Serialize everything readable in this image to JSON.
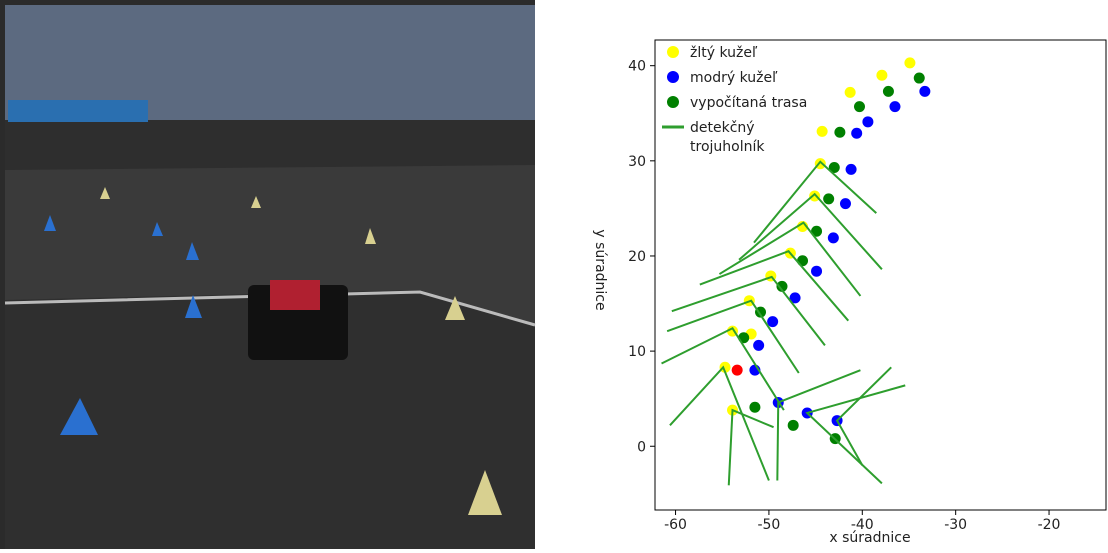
{
  "chart_data": {
    "type": "scatter",
    "xlabel": "x súradnice",
    "ylabel": "y súradnice",
    "xlim": [
      -62.2,
      -13.9
    ],
    "ylim": [
      -6.7,
      42.7
    ],
    "xticks": [
      -60,
      -50,
      -40,
      -30,
      -20
    ],
    "yticks": [
      0,
      10,
      20,
      30,
      40
    ],
    "series": [
      {
        "name": "žltý kužeľ",
        "color": "#ffff00",
        "x": [
          -34.9,
          -37.9,
          -41.3,
          -44.3,
          -44.5,
          -45.1,
          -46.4,
          -47.7,
          -49.8,
          -52.1,
          -51.9,
          -53.9,
          -54.7,
          -53.9
        ],
        "y": [
          40.3,
          39.0,
          37.2,
          33.1,
          29.7,
          26.3,
          23.1,
          20.3,
          17.9,
          15.3,
          11.8,
          12.1,
          8.3,
          3.8
        ]
      },
      {
        "name": "modrý kužeľ",
        "color": "#0000ff",
        "x": [
          -33.3,
          -36.5,
          -39.4,
          -40.6,
          -41.2,
          -41.8,
          -43.1,
          -44.9,
          -47.2,
          -49.6,
          -51.1,
          -51.5,
          -49.0,
          -45.9,
          -42.7
        ],
        "y": [
          37.3,
          35.7,
          34.1,
          32.9,
          29.1,
          25.5,
          21.9,
          18.4,
          15.6,
          13.1,
          10.6,
          8.0,
          4.6,
          3.5,
          2.7
        ]
      },
      {
        "name": "vypočítaná trasa",
        "color": "#008000",
        "x": [
          -33.9,
          -37.2,
          -40.3,
          -42.4,
          -43.0,
          -43.6,
          -44.9,
          -46.4,
          -48.6,
          -50.9,
          -52.7,
          -51.5,
          -47.4,
          -42.9
        ],
        "y": [
          38.7,
          37.3,
          35.7,
          33.0,
          29.3,
          26.0,
          22.6,
          19.5,
          16.8,
          14.1,
          11.4,
          4.1,
          2.2,
          0.8
        ]
      },
      {
        "name": "detekčný trojuholník",
        "color": "#2e9e2e",
        "line": true,
        "x": [
          -51.6,
          -44.5,
          -38.5,
          null,
          -53.2,
          -45.1,
          -37.9,
          null,
          -55.3,
          -46.3,
          -40.2,
          null,
          -57.4,
          -47.9,
          -41.5,
          null,
          -60.4,
          -49.7,
          -44.0,
          null,
          -60.9,
          -51.9,
          -46.8,
          null,
          -61.5,
          -53.9,
          -48.4,
          null,
          -60.6,
          -54.9,
          -50.0,
          null,
          -54.3,
          -53.9,
          -49.5,
          null,
          -49.1,
          -49.0,
          -40.2,
          null,
          -37.9,
          -45.9,
          -35.4,
          null,
          -40.0,
          -42.7,
          -36.9
        ],
        "y": [
          21.4,
          29.9,
          24.5,
          null,
          19.6,
          26.5,
          18.6,
          null,
          18.1,
          23.5,
          15.8,
          null,
          17.0,
          20.5,
          13.2,
          null,
          14.2,
          17.8,
          10.6,
          null,
          12.1,
          15.3,
          7.7,
          null,
          8.7,
          12.4,
          3.8,
          null,
          2.2,
          8.3,
          -3.6,
          null,
          -4.1,
          3.8,
          2.0,
          null,
          -3.6,
          4.6,
          8.0,
          null,
          -3.9,
          3.5,
          6.4,
          null,
          -2.0,
          2.7,
          8.3
        ]
      }
    ],
    "car_position": {
      "color": "#ff0000",
      "x": -53.4,
      "y": 8.0
    }
  }
}
